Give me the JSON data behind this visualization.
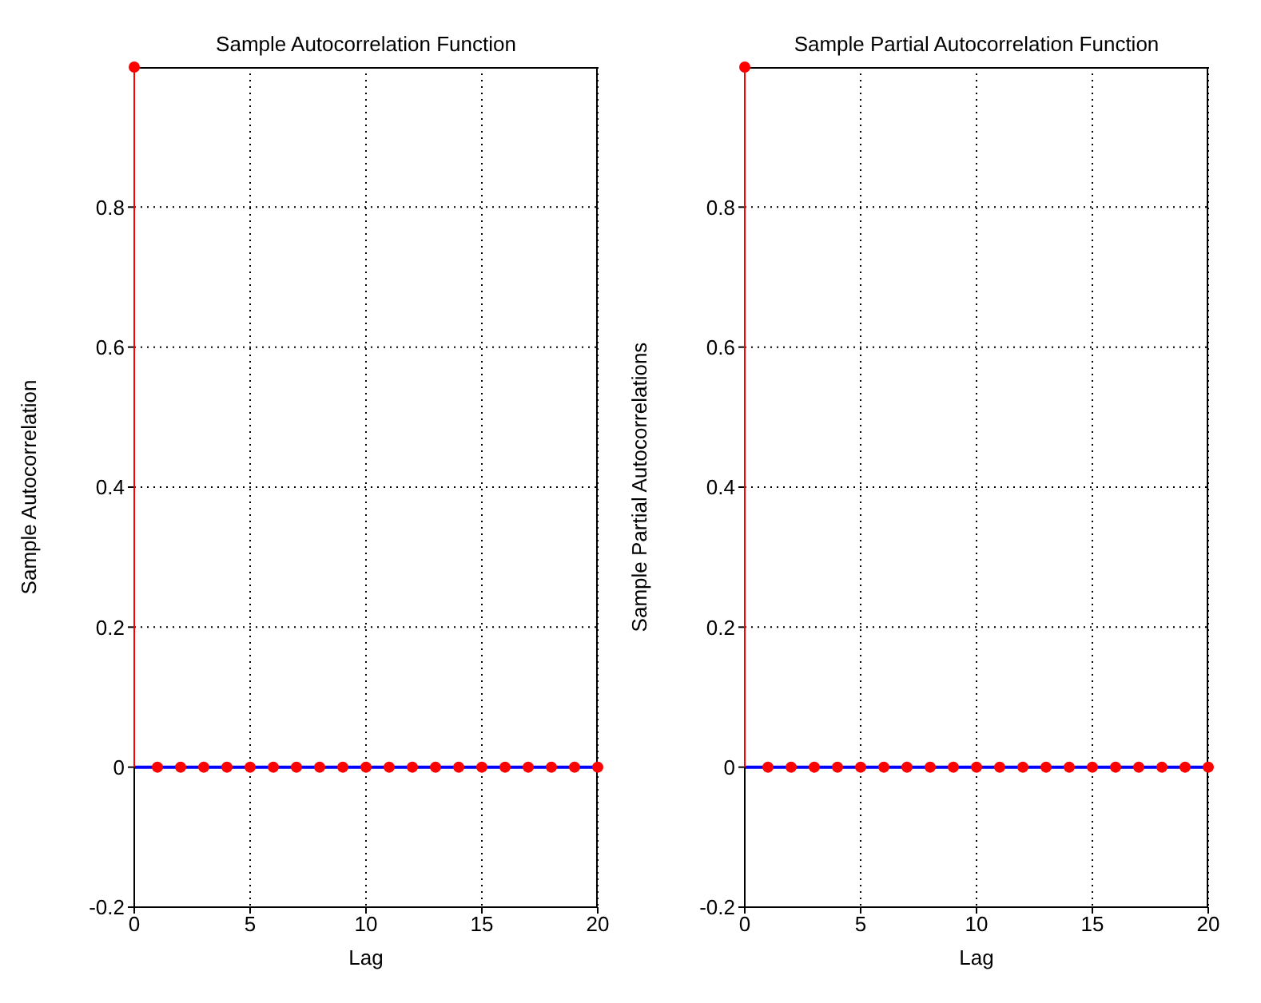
{
  "chart_data": [
    {
      "type": "lollipop",
      "title": "Sample Autocorrelation Function",
      "xlabel": "Lag",
      "ylabel": "Sample Autocorrelation",
      "x": [
        0,
        1,
        2,
        3,
        4,
        5,
        6,
        7,
        8,
        9,
        10,
        11,
        12,
        13,
        14,
        15,
        16,
        17,
        18,
        19,
        20
      ],
      "series": [
        {
          "color": "#ff0000",
          "values": [
            1,
            0,
            0,
            0,
            0,
            0,
            0,
            0,
            0,
            0,
            0,
            0,
            0,
            0,
            0,
            0,
            0,
            0,
            0,
            0,
            0
          ]
        }
      ],
      "xlim": [
        0,
        20
      ],
      "xticks": [
        0,
        5,
        10,
        15,
        20
      ],
      "ylim": [
        -0.2,
        1
      ],
      "yticks": [
        -0.2,
        0,
        0.2,
        0.4,
        0.6,
        0.8
      ],
      "grid": true,
      "marker": "circle",
      "ref_lines": [
        {
          "axis": "y",
          "value": 0,
          "color": "#0000ff"
        }
      ]
    },
    {
      "type": "lollipop",
      "title": "Sample Partial Autocorrelation Function",
      "xlabel": "Lag",
      "ylabel": "Sample Partial Autocorrelations",
      "x": [
        0,
        1,
        2,
        3,
        4,
        5,
        6,
        7,
        8,
        9,
        10,
        11,
        12,
        13,
        14,
        15,
        16,
        17,
        18,
        19,
        20
      ],
      "series": [
        {
          "color": "#ff0000",
          "values": [
            1,
            0,
            0,
            0,
            0,
            0,
            0,
            0,
            0,
            0,
            0,
            0,
            0,
            0,
            0,
            0,
            0,
            0,
            0,
            0,
            0
          ]
        }
      ],
      "xlim": [
        0,
        20
      ],
      "xticks": [
        0,
        5,
        10,
        15,
        20
      ],
      "ylim": [
        -0.2,
        1
      ],
      "yticks": [
        -0.2,
        0,
        0.2,
        0.4,
        0.6,
        0.8
      ],
      "grid": true,
      "marker": "circle",
      "ref_lines": [
        {
          "axis": "y",
          "value": 0,
          "color": "#0000ff"
        }
      ]
    }
  ]
}
